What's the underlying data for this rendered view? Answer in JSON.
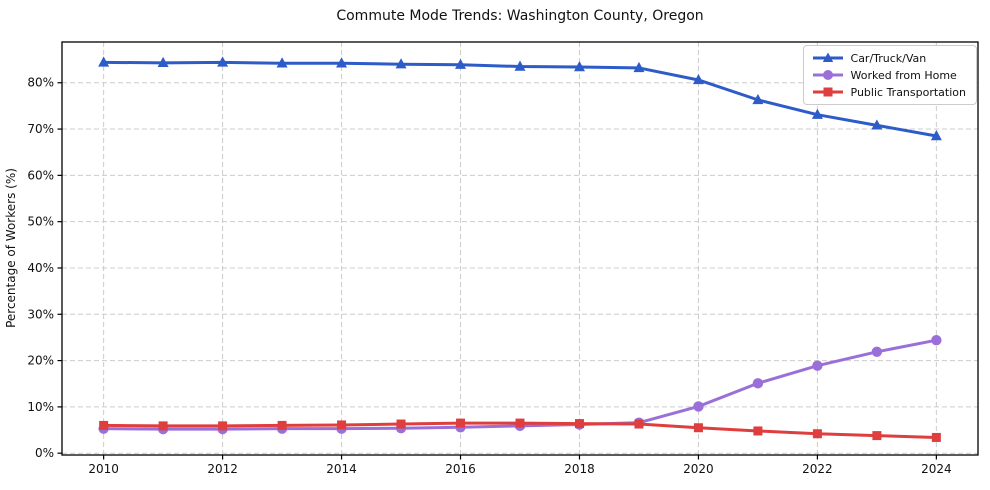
{
  "title": "Commute Mode Trends: Washington County, Oregon",
  "axes": {
    "y_label": "Percentage of Workers (%)",
    "x_tick_labels": [
      "2010",
      "2012",
      "2014",
      "2016",
      "2018",
      "2020",
      "2022",
      "2024"
    ],
    "y_tick_labels": [
      "0%",
      "10%",
      "20%",
      "30%",
      "40%",
      "50%",
      "60%",
      "70%",
      "80%"
    ]
  },
  "legend": {
    "position": "upper right",
    "items": [
      "Car/Truck/Van",
      "Worked from Home",
      "Public Transportation"
    ]
  },
  "chart_data": {
    "type": "line",
    "title": "Commute Mode Trends: Washington County, Oregon",
    "xlabel": "",
    "ylabel": "Percentage of Workers (%)",
    "x": [
      2010,
      2011,
      2012,
      2013,
      2014,
      2015,
      2016,
      2017,
      2018,
      2019,
      2020,
      2021,
      2022,
      2023,
      2024
    ],
    "series": [
      {
        "name": "Car/Truck/Van",
        "color": "#2d5bc8",
        "marker": "triangle",
        "values": [
          84.4,
          84.3,
          84.4,
          84.2,
          84.2,
          84.0,
          83.9,
          83.5,
          83.4,
          83.2,
          80.6,
          76.3,
          73.1,
          70.8,
          68.5
        ]
      },
      {
        "name": "Worked from Home",
        "color": "#9a70d8",
        "marker": "circle",
        "values": [
          5.3,
          5.2,
          5.2,
          5.3,
          5.3,
          5.4,
          5.6,
          5.9,
          6.2,
          6.6,
          10.1,
          15.1,
          18.9,
          21.9,
          24.4
        ]
      },
      {
        "name": "Public Transportation",
        "color": "#df3e3e",
        "marker": "square",
        "values": [
          6.0,
          5.9,
          5.9,
          6.0,
          6.1,
          6.3,
          6.5,
          6.5,
          6.4,
          6.3,
          5.5,
          4.8,
          4.2,
          3.8,
          3.4
        ]
      }
    ],
    "xlim": [
      2009.3,
      2024.7
    ],
    "ylim": [
      0,
      88.8
    ],
    "x_tick_values": [
      2010,
      2012,
      2014,
      2016,
      2018,
      2020,
      2022,
      2024
    ],
    "y_tick_values": [
      0,
      10,
      20,
      30,
      40,
      50,
      60,
      70,
      80
    ],
    "grid": true,
    "grid_style": "dashed",
    "grid_color": "#cccccc",
    "legend_position": "upper right"
  }
}
